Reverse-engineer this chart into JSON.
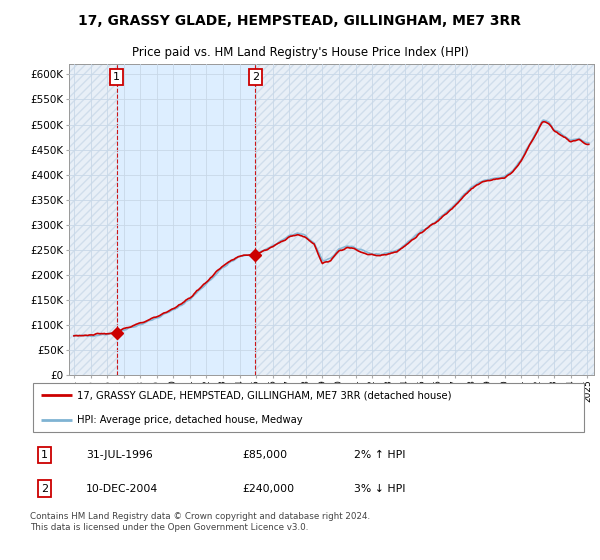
{
  "title": "17, GRASSY GLADE, HEMPSTEAD, GILLINGHAM, ME7 3RR",
  "subtitle": "Price paid vs. HM Land Registry's House Price Index (HPI)",
  "title_fontsize": 10,
  "subtitle_fontsize": 8.5,
  "legend_line1": "17, GRASSY GLADE, HEMPSTEAD, GILLINGHAM, ME7 3RR (detached house)",
  "legend_line2": "HPI: Average price, detached house, Medway",
  "sale1_label": "1",
  "sale1_date": "31-JUL-1996",
  "sale1_price": "£85,000",
  "sale1_hpi": "2% ↑ HPI",
  "sale2_label": "2",
  "sale2_date": "10-DEC-2004",
  "sale2_price": "£240,000",
  "sale2_hpi": "3% ↓ HPI",
  "footnote": "Contains HM Land Registry data © Crown copyright and database right 2024.\nThis data is licensed under the Open Government Licence v3.0.",
  "sale_color": "#cc0000",
  "hpi_color": "#7fb3d3",
  "ylim": [
    0,
    620000
  ],
  "yticks": [
    0,
    50000,
    100000,
    150000,
    200000,
    250000,
    300000,
    350000,
    400000,
    450000,
    500000,
    550000,
    600000
  ],
  "background_color": "#ffffff",
  "grid_color": "#c8d8e8",
  "fill_color": "#ddeeff",
  "sale1_year": 1996.58,
  "sale1_value": 85000,
  "sale2_year": 2004.95,
  "sale2_value": 240000,
  "xlim_min": 1993.7,
  "xlim_max": 2025.4
}
